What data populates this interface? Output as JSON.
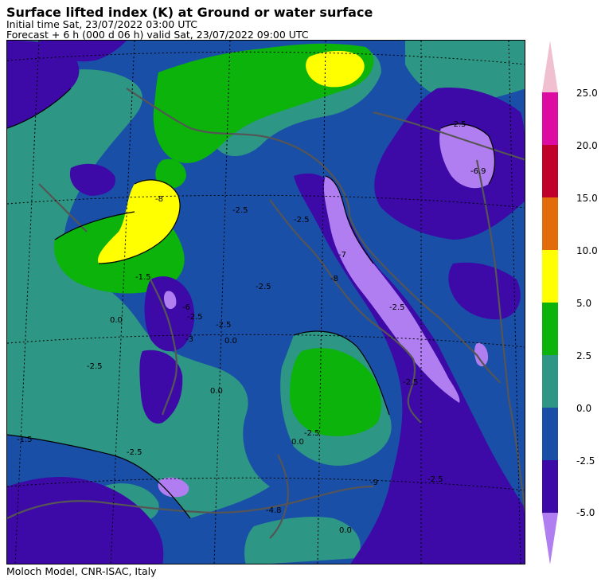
{
  "header": {
    "title": "Surface lifted index (K) at Ground or water surface",
    "initial_time": "Initial time  Sat, 23/07/2022  03:00 UTC",
    "forecast": "Forecast  +   6 h  (000 d 06 h)  valid Sat, 23/07/2022 09:00 UTC"
  },
  "footer": {
    "credit": "Moloch Model, CNR-ISAC, Italy"
  },
  "legend": {
    "ticks": [
      {
        "label": "25.0",
        "value": 25.0
      },
      {
        "label": "20.0",
        "value": 20.0
      },
      {
        "label": "15.0",
        "value": 15.0
      },
      {
        "label": "10.0",
        "value": 10.0
      },
      {
        "label": "5.0",
        "value": 5.0
      },
      {
        "label": "2.5",
        "value": 2.5
      },
      {
        "label": "0.0",
        "value": 0.0
      },
      {
        "label": "-2.5",
        "value": -2.5
      },
      {
        "label": "-5.0",
        "value": -5.0
      }
    ],
    "colors": {
      "below_-5": "#b07ef0",
      "-5_to_-2.5": "#3d0aa8",
      "-2.5_to_0": "#1a4fa8",
      "0_to_2.5": "#2d9684",
      "2.5_to_5": "#0bb30b",
      "5_to_10": "#ffff00",
      "10_to_15": "#e36c0a",
      "15_to_20": "#c0002a",
      "20_to_25": "#dc0ca2",
      "above_25": "#f0c0d0"
    }
  },
  "map": {
    "contour_labels": [
      "-2.5",
      "-6.9",
      "-8",
      "-7",
      "-2.5",
      "-2.5",
      "0.0",
      "-1.5",
      "-6",
      "-2.5",
      "0.0",
      "0.0",
      "-2.5",
      "-2.5",
      "0.0",
      "-2.5",
      "-1.5",
      "-2.5",
      "-2.5",
      "-2.5",
      "-2.5",
      "-8",
      "0.0",
      "-9",
      "-2.5",
      "-3",
      "-4.8"
    ]
  }
}
